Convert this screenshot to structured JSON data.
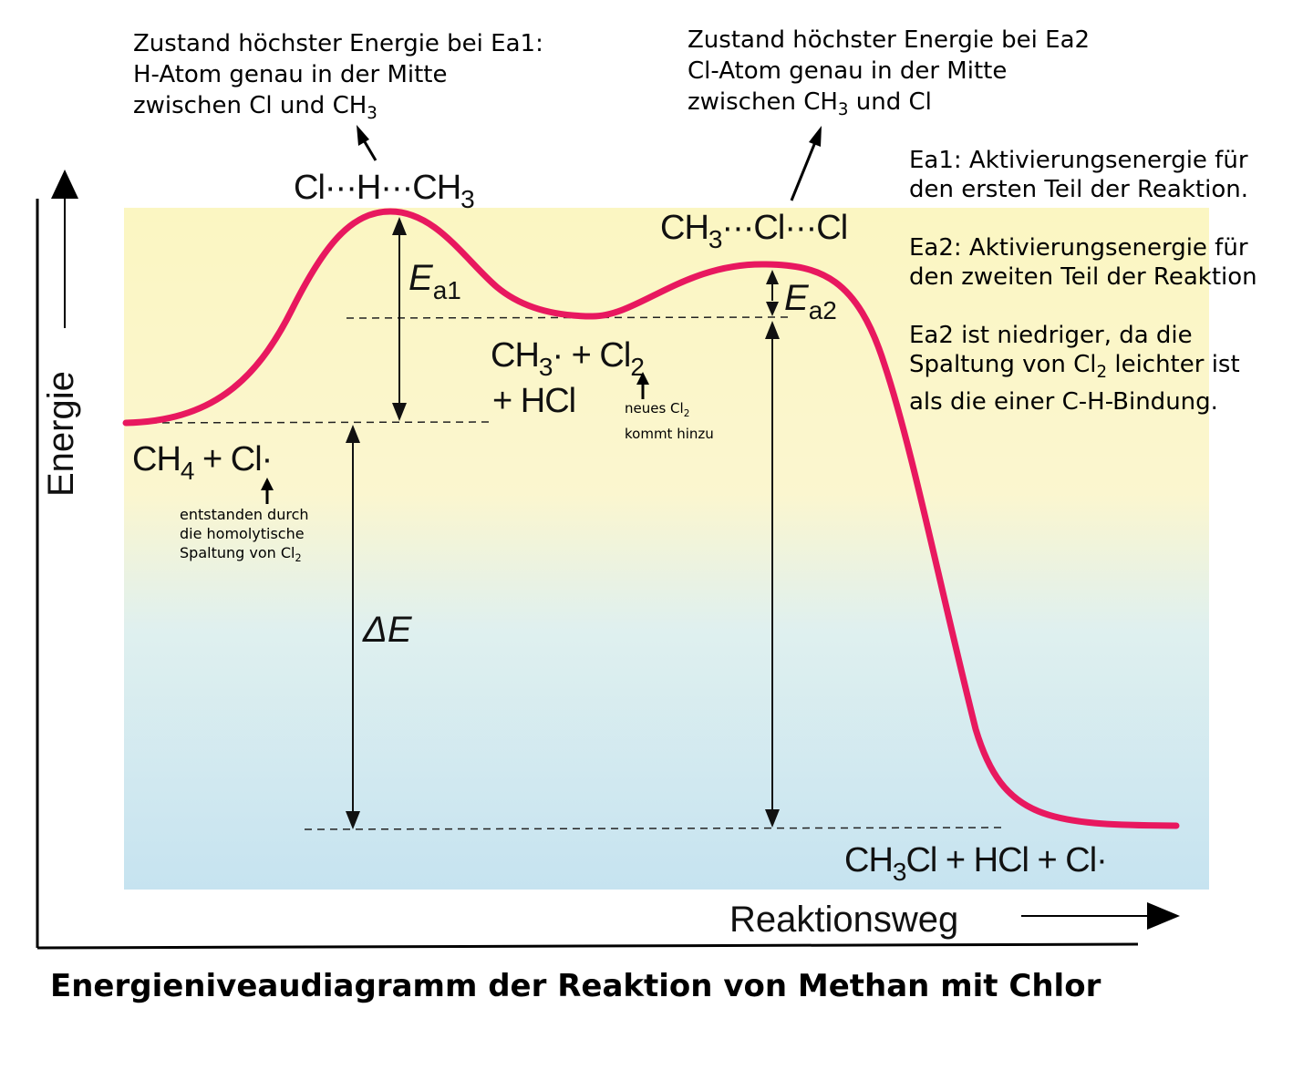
{
  "title": "Energieniveaudiagramm der Reaktion von Methan mit Chlor",
  "axis": {
    "y_label": "Energie",
    "x_label": "Reaktionsweg"
  },
  "species": {
    "ts1": [
      "Cl···H···CH",
      "3"
    ],
    "ts2": [
      "CH",
      "3",
      "···Cl···Cl"
    ],
    "reactants": [
      "CH",
      "4",
      " + Cl·"
    ],
    "intermediate_line1": [
      "CH",
      "3",
      "· + Cl",
      "2"
    ],
    "intermediate_line2": "+ HCl",
    "products": [
      "CH",
      "3",
      "Cl + HCl + Cl·"
    ]
  },
  "energy_labels": {
    "ea1": [
      "E",
      "a1"
    ],
    "ea2": [
      "E",
      "a2"
    ],
    "delta_e": "ΔE"
  },
  "annotations": {
    "ts1_note": {
      "line1": "Zustand höchster Energie bei Ea1:",
      "line2": "H-Atom genau in der Mitte",
      "line3_text": "zwischen Cl und CH",
      "line3_sub": "3"
    },
    "ts2_note": {
      "line1": "Zustand höchster Energie bei Ea2",
      "line2": "Cl-Atom genau in der Mitte",
      "line3_text": "zwischen CH",
      "line3_sub": "3",
      "line3_tail": " und Cl"
    },
    "ea1_def": {
      "line1": "Ea1: Aktivierungsenergie für",
      "line2": "den ersten Teil der Reaktion."
    },
    "ea2_def": {
      "line1": "Ea2: Aktivierungsenergie für",
      "line2": "den zweiten Teil der Reaktion"
    },
    "ea2_reason": {
      "line1": "Ea2 ist niedriger, da die",
      "line2_text": "Spaltung von Cl",
      "line2_sub": "2",
      "line2_tail": " leichter ist",
      "line3": "als die einer C-H-Bindung."
    },
    "cl_radical_note": {
      "line1": "entstanden durch",
      "line2": "die homolytische",
      "line3_text": "Spaltung von Cl",
      "line3_sub": "2"
    },
    "new_cl2_note": {
      "line1_text": "neues Cl",
      "line1_sub": "2",
      "line2": "kommt hinzu"
    }
  },
  "colors": {
    "curve": "#e8185f",
    "background_top": "#fbf6c2",
    "background_bottom": "#c8e4f0",
    "axis": "#000000"
  }
}
